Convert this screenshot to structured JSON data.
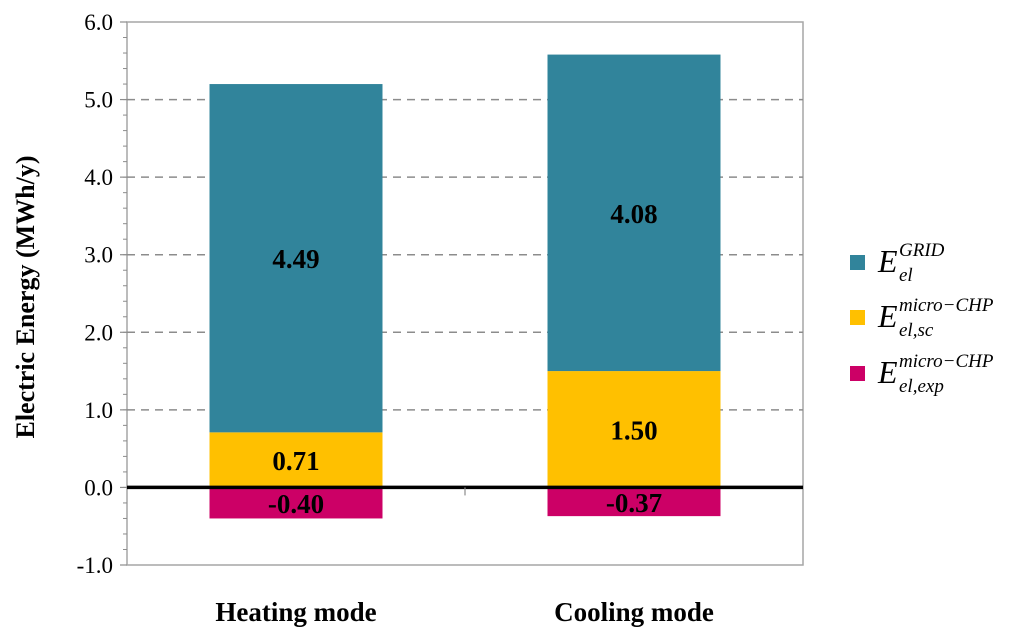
{
  "chart_data": {
    "type": "bar",
    "stacked": true,
    "categories": [
      "Heating mode",
      "Cooling mode"
    ],
    "series": [
      {
        "legend": {
          "main": "E",
          "sup": "GRID",
          "sub": "el"
        },
        "color": "#31849B",
        "values": [
          4.49,
          4.08
        ],
        "labels": [
          "4.49",
          "4.08"
        ]
      },
      {
        "legend": {
          "main": "E",
          "sup": "micro−CHP",
          "sub": "el,sc"
        },
        "color": "#FFC000",
        "values": [
          0.71,
          1.5
        ],
        "labels": [
          "0.71",
          "1.50"
        ]
      },
      {
        "legend": {
          "main": "E",
          "sup": "micro−CHP",
          "sub": "el,exp"
        },
        "color": "#CC0066",
        "values": [
          -0.4,
          -0.37
        ],
        "labels": [
          "-0.40",
          "-0.37"
        ]
      }
    ],
    "ylabel": "Electric Energy (MWh/y)",
    "xlabel": "",
    "ylim": [
      -1.0,
      6.0
    ],
    "yticks": [
      "-1.0",
      "0.0",
      "1.0",
      "2.0",
      "3.0",
      "4.0",
      "5.0",
      "6.0"
    ],
    "grid": "dashed horizontal",
    "legend_position": "right"
  }
}
